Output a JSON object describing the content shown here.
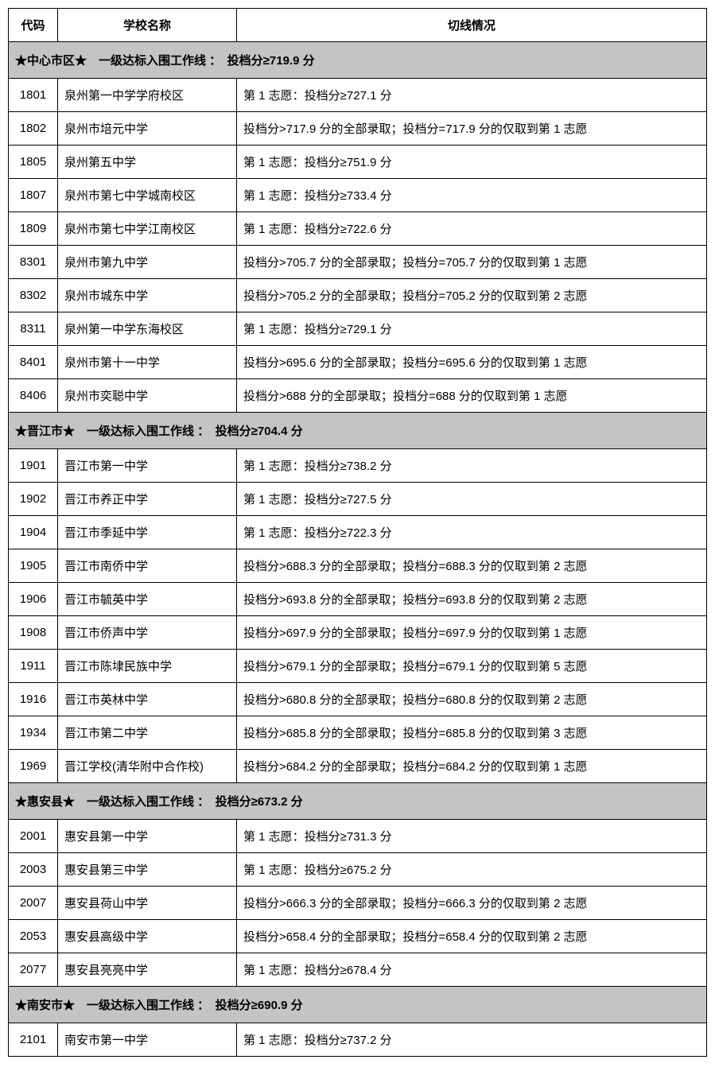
{
  "headers": {
    "code": "代码",
    "name": "学校名称",
    "info": "切线情况"
  },
  "colors": {
    "section_bg": "#c4c4c4",
    "border": "#000000",
    "background": "#ffffff"
  },
  "sections": [
    {
      "title": "★中心市区★　一级达标入围工作线 ：　投档分≥719.9 分",
      "rows": [
        {
          "code": "1801",
          "name": "泉州第一中学学府校区",
          "info": "第 1 志愿：投档分≥727.1 分"
        },
        {
          "code": "1802",
          "name": "泉州市培元中学",
          "info": "投档分>717.9 分的全部录取；投档分=717.9 分的仅取到第 1 志愿"
        },
        {
          "code": "1805",
          "name": "泉州第五中学",
          "info": "第 1 志愿：投档分≥751.9 分"
        },
        {
          "code": "1807",
          "name": "泉州市第七中学城南校区",
          "info": "第 1 志愿：投档分≥733.4 分"
        },
        {
          "code": "1809",
          "name": "泉州市第七中学江南校区",
          "info": "第 1 志愿：投档分≥722.6 分"
        },
        {
          "code": "8301",
          "name": "泉州市第九中学",
          "info": "投档分>705.7 分的全部录取；投档分=705.7 分的仅取到第 1 志愿"
        },
        {
          "code": "8302",
          "name": "泉州市城东中学",
          "info": "投档分>705.2 分的全部录取；投档分=705.2 分的仅取到第 2 志愿"
        },
        {
          "code": "8311",
          "name": "泉州第一中学东海校区",
          "info": "第 1 志愿：投档分≥729.1 分"
        },
        {
          "code": "8401",
          "name": "泉州市第十一中学",
          "info": "投档分>695.6 分的全部录取；投档分=695.6 分的仅取到第 1 志愿"
        },
        {
          "code": "8406",
          "name": "泉州市奕聪中学",
          "info": "投档分>688 分的全部录取；投档分=688 分的仅取到第 1 志愿"
        }
      ]
    },
    {
      "title": "★晋江市★　一级达标入围工作线 ：　投档分≥704.4 分",
      "rows": [
        {
          "code": "1901",
          "name": "晋江市第一中学",
          "info": "第 1 志愿：投档分≥738.2 分"
        },
        {
          "code": "1902",
          "name": "晋江市养正中学",
          "info": "第 1 志愿：投档分≥727.5 分"
        },
        {
          "code": "1904",
          "name": "晋江市季延中学",
          "info": "第 1 志愿：投档分≥722.3 分"
        },
        {
          "code": "1905",
          "name": "晋江市南侨中学",
          "info": "投档分>688.3 分的全部录取；投档分=688.3 分的仅取到第 2 志愿"
        },
        {
          "code": "1906",
          "name": "晋江市毓英中学",
          "info": "投档分>693.8 分的全部录取；投档分=693.8 分的仅取到第 2 志愿"
        },
        {
          "code": "1908",
          "name": "晋江市侨声中学",
          "info": "投档分>697.9 分的全部录取；投档分=697.9 分的仅取到第 1 志愿"
        },
        {
          "code": "1911",
          "name": "晋江市陈埭民族中学",
          "info": "投档分>679.1 分的全部录取；投档分=679.1 分的仅取到第 5 志愿"
        },
        {
          "code": "1916",
          "name": "晋江市英林中学",
          "info": "投档分>680.8 分的全部录取；投档分=680.8 分的仅取到第 2 志愿"
        },
        {
          "code": "1934",
          "name": "晋江市第二中学",
          "info": "投档分>685.8 分的全部录取；投档分=685.8 分的仅取到第 3 志愿"
        },
        {
          "code": "1969",
          "name": "晋江学校(清华附中合作校)",
          "info": "投档分>684.2 分的全部录取；投档分=684.2 分的仅取到第 1 志愿"
        }
      ]
    },
    {
      "title": "★惠安县★　一级达标入围工作线 ：　投档分≥673.2 分",
      "rows": [
        {
          "code": "2001",
          "name": "惠安县第一中学",
          "info": "第 1 志愿：投档分≥731.3 分"
        },
        {
          "code": "2003",
          "name": "惠安县第三中学",
          "info": "第 1 志愿：投档分≥675.2 分"
        },
        {
          "code": "2007",
          "name": "惠安县荷山中学",
          "info": "投档分>666.3 分的全部录取；投档分=666.3 分的仅取到第 2 志愿"
        },
        {
          "code": "2053",
          "name": "惠安县高级中学",
          "info": "投档分>658.4 分的全部录取；投档分=658.4 分的仅取到第 2 志愿"
        },
        {
          "code": "2077",
          "name": "惠安县亮亮中学",
          "info": "第 1 志愿：投档分≥678.4 分"
        }
      ]
    },
    {
      "title": "★南安市★　一级达标入围工作线 ：　投档分≥690.9 分",
      "rows": [
        {
          "code": "2101",
          "name": "南安市第一中学",
          "info": "第 1 志愿：投档分≥737.2 分"
        }
      ]
    }
  ]
}
